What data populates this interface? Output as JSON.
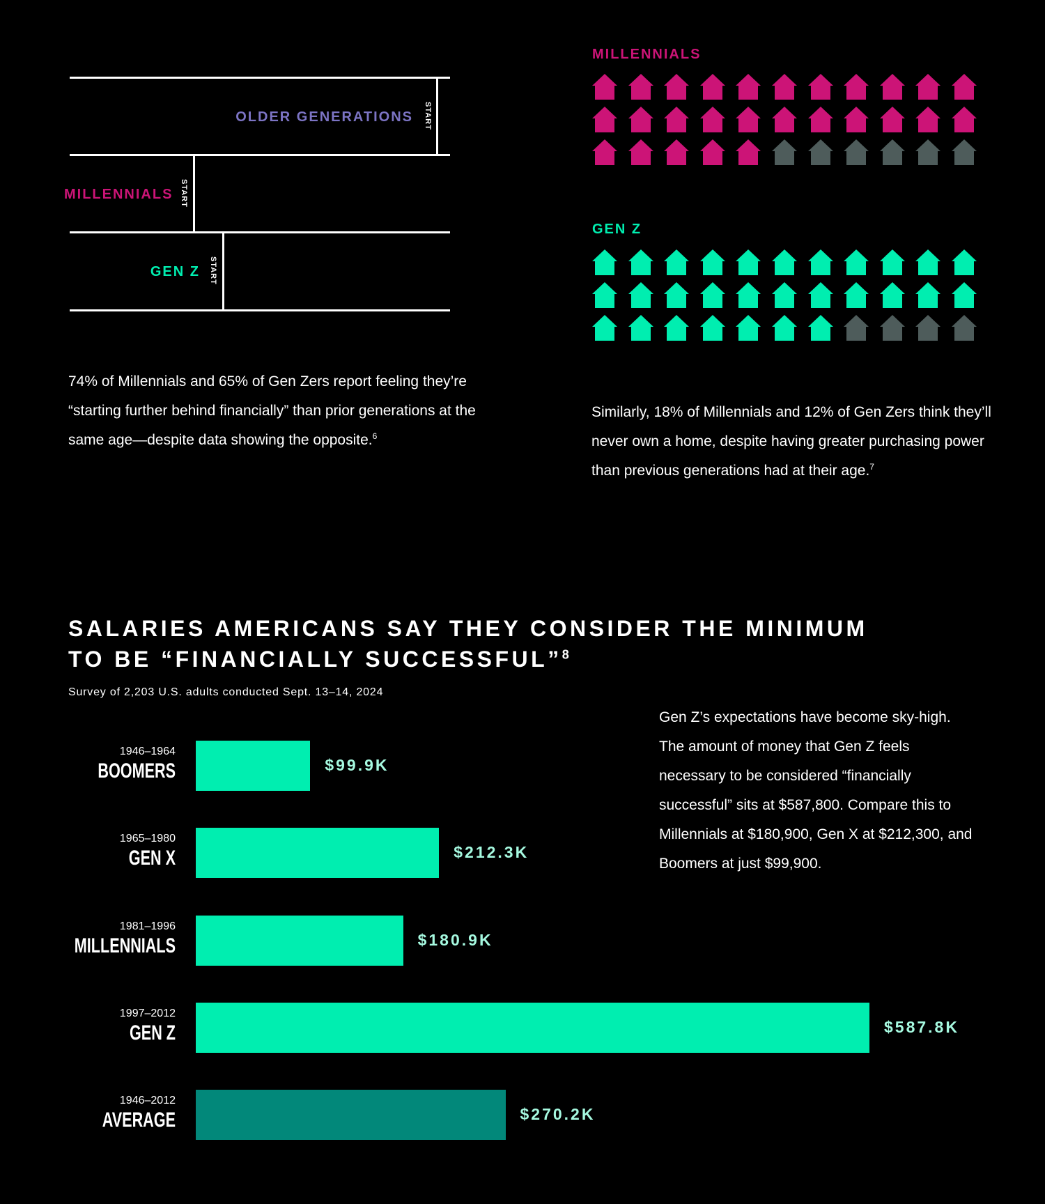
{
  "track": {
    "start_label": "START",
    "older": "OLDER GENERATIONS",
    "millennials": "MILLENNIALS",
    "genz": "GEN Z"
  },
  "colors": {
    "older": "#7c74c4",
    "millennials": "#cc1477",
    "genz": "#00eeb0",
    "gray_house": "#4e5c5b",
    "bar": "#00eeb0",
    "bar_average": "#02887a",
    "value_text": "#a6f9e0"
  },
  "para_left": {
    "text": "74% of Millennials and 65% of Gen Zers report feeling they’re “starting further behind financially” than prior generations at the same age—despite data showing the opposite.",
    "footnote": "6"
  },
  "homes": {
    "millennials": {
      "title": "MILLENNIALS",
      "total": 33,
      "filled": 27,
      "icon": "house-icon"
    },
    "genz": {
      "title": "GEN Z",
      "total": 33,
      "filled": 29,
      "icon": "house-icon"
    }
  },
  "para_right": {
    "text": "Similarly, 18% of Millennials and 12% of Gen Zers think they’ll never own a home, despite having greater purchasing power than previous generations had at their age.",
    "footnote": "7"
  },
  "chart_title": {
    "line1": "SALARIES AMERICANS SAY THEY CONSIDER THE MINIMUM",
    "line2": "TO BE “FINANCIALLY SUCCESSFUL”",
    "footnote": "8",
    "subtitle": "Survey of 2,203 U.S. adults conducted Sept. 13–14, 2024"
  },
  "chart_data": {
    "type": "bar",
    "orientation": "horizontal",
    "categories": [
      "BOOMERS",
      "GEN X",
      "MILLENNIALS",
      "GEN Z",
      "AVERAGE"
    ],
    "years": [
      "1946–1964",
      "1965–1980",
      "1981–1996",
      "1997–2012",
      "1946–2012"
    ],
    "values": [
      99.9,
      212.3,
      180.9,
      587.8,
      270.2
    ],
    "value_labels": [
      "$99.9K",
      "$212.3K",
      "$180.9K",
      "$587.8K",
      "$270.2K"
    ],
    "xlim": [
      0,
      587.8
    ],
    "grid": false
  },
  "para_chart": {
    "text": "Gen Z’s expectations have become sky-high. The amount of money that Gen Z feels necessary to be considered “financially successful” sits at $587,800. Compare this to Millennials at $180,900, Gen X at $212,300, and Boomers at just $99,900."
  }
}
